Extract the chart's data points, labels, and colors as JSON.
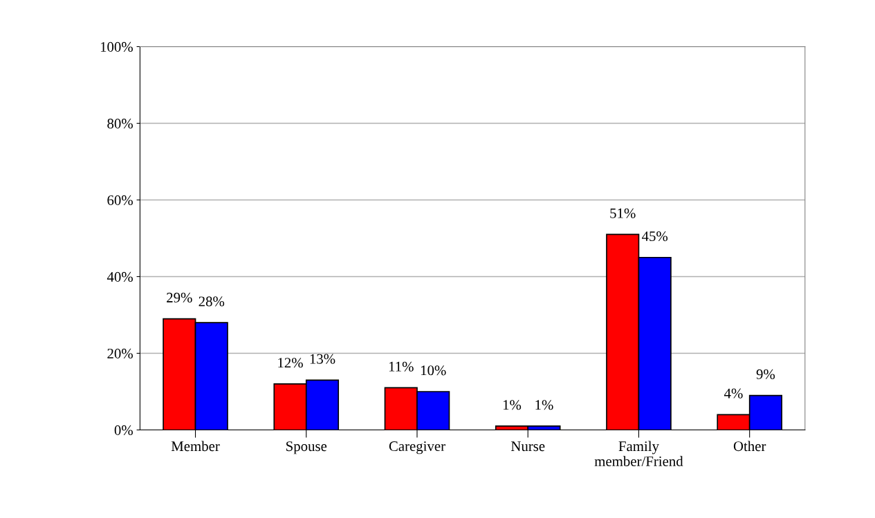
{
  "chart_data": {
    "type": "bar",
    "categories": [
      "Member",
      "Spouse",
      "Caregiver",
      "Nurse",
      "Family\nmember/Friend",
      "Other"
    ],
    "series": [
      {
        "color": "#ff0000",
        "values": [
          29,
          12,
          11,
          1,
          51,
          4
        ],
        "value_labels": [
          "29%",
          "12%",
          "11%",
          "1%",
          "51%",
          "4%"
        ]
      },
      {
        "color": "#0000ff",
        "values": [
          28,
          13,
          10,
          1,
          45,
          9
        ],
        "value_labels": [
          "28%",
          "13%",
          "10%",
          "1%",
          "45%",
          "9%"
        ]
      }
    ],
    "ylim": [
      0,
      100
    ],
    "yticks": [
      {
        "value": 0,
        "label": "0%"
      },
      {
        "value": 20,
        "label": "20%"
      },
      {
        "value": 40,
        "label": "40%"
      },
      {
        "value": 60,
        "label": "60%"
      },
      {
        "value": 80,
        "label": "80%"
      },
      {
        "value": 100,
        "label": "100%"
      }
    ],
    "grid": "y"
  }
}
